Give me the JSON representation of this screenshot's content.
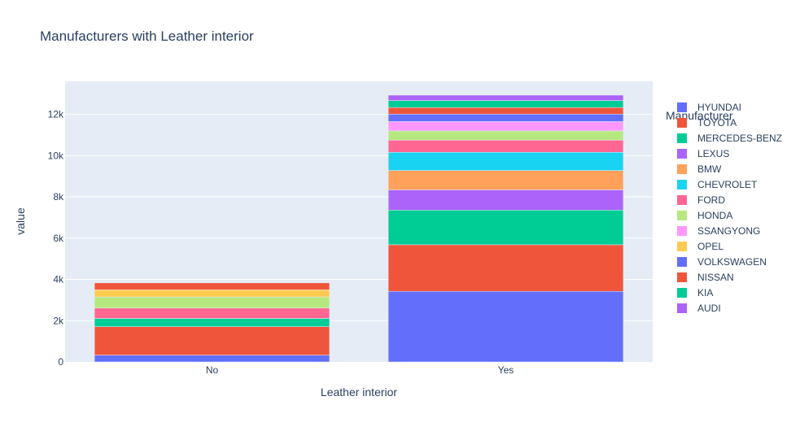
{
  "chart_data": {
    "type": "bar",
    "barmode": "stack",
    "title": "Manufacturers with Leather interior",
    "xlabel": "Leather interior",
    "ylabel": "value",
    "categories": [
      "No",
      "Yes"
    ],
    "ylim": [
      0,
      13600
    ],
    "yticks": [
      0,
      2000,
      4000,
      6000,
      8000,
      10000,
      12000
    ],
    "ytick_labels": [
      "0",
      "2k",
      "4k",
      "6k",
      "8k",
      "10k",
      "12k"
    ],
    "grid": true,
    "legend": {
      "title": "Manufacturer",
      "position": "right"
    },
    "series": [
      {
        "name": "HYUNDAI",
        "color": "#636efa",
        "values": [
          330,
          3420
        ]
      },
      {
        "name": "TOYOTA",
        "color": "#EF553B",
        "values": [
          1380,
          2260
        ]
      },
      {
        "name": "MERCEDES-BENZ",
        "color": "#00cc96",
        "values": [
          400,
          1680
        ]
      },
      {
        "name": "LEXUS",
        "color": "#ab63fa",
        "values": [
          0,
          980
        ]
      },
      {
        "name": "BMW",
        "color": "#FFA15A",
        "values": [
          0,
          940
        ]
      },
      {
        "name": "CHEVROLET",
        "color": "#19d3f3",
        "values": [
          0,
          880
        ]
      },
      {
        "name": "FORD",
        "color": "#FF6692",
        "values": [
          500,
          590
        ]
      },
      {
        "name": "HONDA",
        "color": "#B6E880",
        "values": [
          540,
          450
        ]
      },
      {
        "name": "SSANGYONG",
        "color": "#FF97FF",
        "values": [
          0,
          450
        ]
      },
      {
        "name": "OPEL",
        "color": "#FECB52",
        "values": [
          350,
          0
        ]
      },
      {
        "name": "VOLKSWAGEN",
        "color": "#636efa",
        "values": [
          0,
          360
        ]
      },
      {
        "name": "NISSAN",
        "color": "#EF553B",
        "values": [
          330,
          320
        ]
      },
      {
        "name": "KIA",
        "color": "#00cc96",
        "values": [
          0,
          340
        ]
      },
      {
        "name": "AUDI",
        "color": "#ab63fa",
        "values": [
          0,
          260
        ]
      }
    ]
  }
}
